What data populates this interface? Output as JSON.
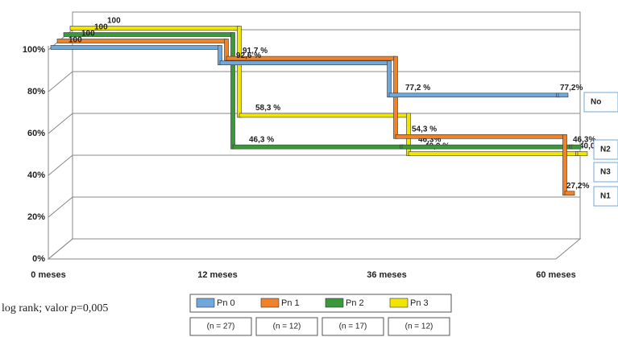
{
  "chart_data": {
    "type": "step3d",
    "categories": [
      "0 meses",
      "12 meses",
      "36 meses",
      "60 meses"
    ],
    "series": [
      {
        "name": "Pn 0",
        "color": "#6fa8dc",
        "values": [
          100,
          92.6,
          77.2,
          77.2
        ],
        "value_labels": [
          "100",
          "92,6 %",
          "77,2 %",
          "77,2%"
        ],
        "sample_label": "(n = 27)"
      },
      {
        "name": "Pn 1",
        "color": "#f0822a",
        "values": [
          100,
          91.7,
          54.3,
          27.2
        ],
        "value_labels": [
          "100",
          "91,7 %",
          "54,3 %",
          "27,2%"
        ],
        "sample_label": "(n = 12)"
      },
      {
        "name": "Pn 2",
        "color": "#3a9a3a",
        "values": [
          100,
          46.3,
          46.3,
          46.3
        ],
        "value_labels": [
          "100",
          "46,3 %",
          "46,3%",
          "46,3%"
        ],
        "sample_label": "(n = 17)"
      },
      {
        "name": "Pn 3",
        "color": "#f2e600",
        "values": [
          100,
          58.3,
          40.0,
          40.0
        ],
        "value_labels": [
          "100",
          "58,3 %",
          "40,0 %",
          "40,0%"
        ],
        "sample_label": "(n = 12)"
      }
    ],
    "ylim": [
      0,
      100
    ],
    "yticks": [
      {
        "value": 0,
        "label": "0%"
      },
      {
        "value": 20,
        "label": "20%"
      },
      {
        "value": 40,
        "label": "40%"
      },
      {
        "value": 60,
        "label": "60%"
      },
      {
        "value": 80,
        "label": "80%"
      },
      {
        "value": 100,
        "label": "100%"
      }
    ],
    "grid": true,
    "side_labels": [
      "No",
      "N2",
      "N3",
      "N1"
    ],
    "note": {
      "prefix": "log rank; valor ",
      "italic": "p",
      "suffix": "=0,005"
    }
  }
}
